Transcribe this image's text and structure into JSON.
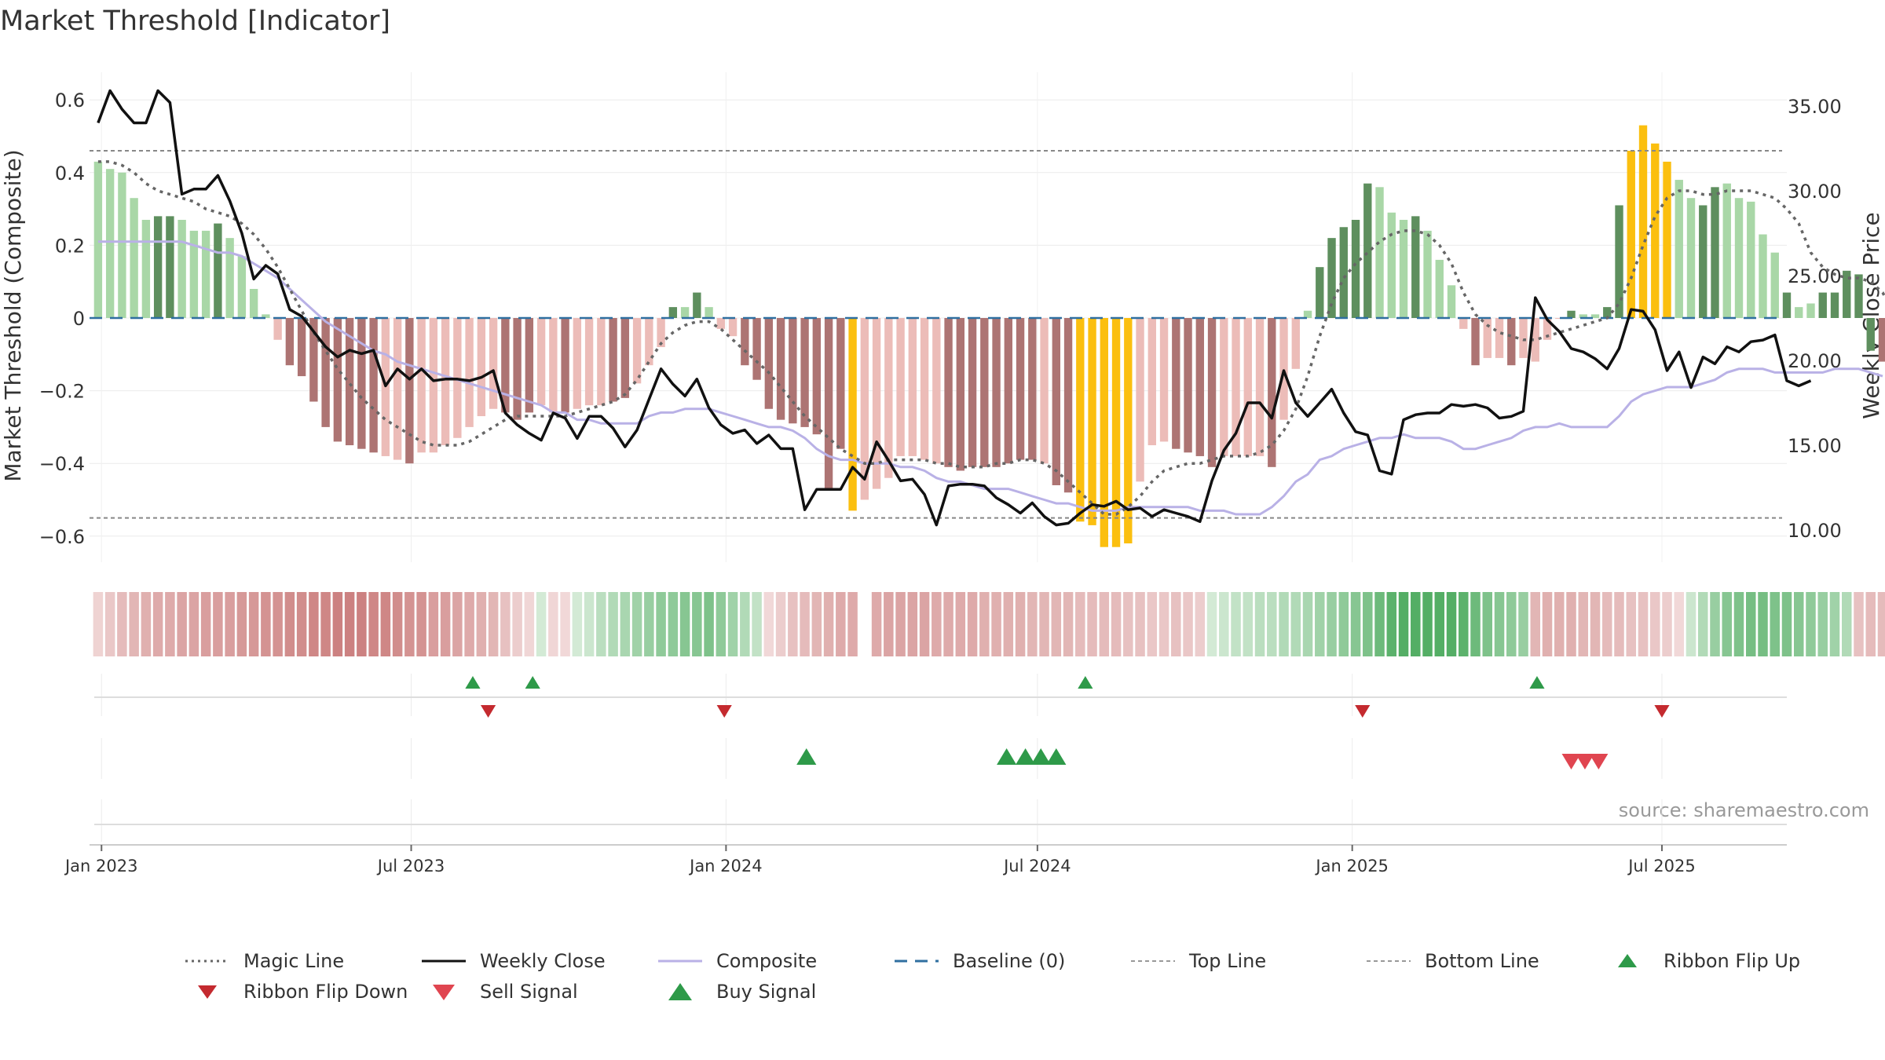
{
  "chart_data": {
    "type": "bar",
    "title": "Market Threshold [Indicator]",
    "ylabel_left": "Market Threshold (Composite)",
    "ylabel_right": "Weekly Close Price",
    "source": "source: sharemaestro.com",
    "ylim_left": [
      -0.7,
      0.7
    ],
    "ylim_right": [
      7.5,
      37.5
    ],
    "yticks_left": [
      {
        "value": 0.6,
        "label": "0.6"
      },
      {
        "value": 0.4,
        "label": "0.4"
      },
      {
        "value": 0.2,
        "label": "0.2"
      },
      {
        "value": 0,
        "label": "0"
      },
      {
        "value": -0.2,
        "label": "−0.2"
      },
      {
        "value": -0.4,
        "label": "−0.4"
      },
      {
        "value": -0.6,
        "label": "−0.6"
      }
    ],
    "yticks_right": [
      {
        "value": 35,
        "label": "35.00"
      },
      {
        "value": 30,
        "label": "30.00"
      },
      {
        "value": 25,
        "label": "25.00"
      },
      {
        "value": 20,
        "label": "20.00"
      },
      {
        "value": 15,
        "label": "15.00"
      },
      {
        "value": 10,
        "label": "10.00"
      }
    ],
    "xlim": [
      "2022-12-25",
      "2025-09-12"
    ],
    "xticks": [
      {
        "date": "2023-01-01",
        "label": "Jan 2023"
      },
      {
        "date": "2023-07-01",
        "label": "Jul 2023"
      },
      {
        "date": "2024-01-01",
        "label": "Jan 2024"
      },
      {
        "date": "2024-07-01",
        "label": "Jul 2024"
      },
      {
        "date": "2025-01-01",
        "label": "Jan 2025"
      },
      {
        "date": "2025-07-01",
        "label": "Jul 2025"
      }
    ],
    "start_date": "2022-12-30",
    "top_line": 0.46,
    "bottom_line": -0.55,
    "grid": true,
    "legend_position": "bottom",
    "colors": {
      "bar_pos_strong": "#5e8f5e",
      "bar_pos_light": "#a9d7a7",
      "bar_neg_strong": "#ad7473",
      "bar_neg_light": "#ecbcb8",
      "bar_extreme": "#fbbf0f",
      "weekly_close": "#111111",
      "magic_line": "#666666",
      "composite": "#b9b1e6",
      "baseline": "#2f6fa0",
      "threshold_lines": "#888888",
      "signal_up": "#2e9a49",
      "signal_down": "#d03038"
    },
    "composite_bars": [
      0.43,
      0.41,
      0.4,
      0.33,
      0.27,
      0.28,
      0.28,
      0.27,
      0.24,
      0.24,
      0.26,
      0.22,
      0.17,
      0.08,
      0.01,
      -0.06,
      -0.13,
      -0.16,
      -0.23,
      -0.3,
      -0.34,
      -0.35,
      -0.36,
      -0.37,
      -0.38,
      -0.39,
      -0.4,
      -0.37,
      -0.37,
      -0.35,
      -0.33,
      -0.3,
      -0.27,
      -0.25,
      -0.26,
      -0.28,
      -0.26,
      -0.24,
      -0.26,
      -0.26,
      -0.25,
      -0.24,
      -0.24,
      -0.23,
      -0.22,
      -0.18,
      -0.13,
      -0.08,
      0.03,
      0.03,
      0.07,
      0.03,
      -0.03,
      -0.05,
      -0.13,
      -0.17,
      -0.25,
      -0.28,
      -0.29,
      -0.3,
      -0.32,
      -0.47,
      -0.36,
      -0.53,
      -0.5,
      -0.47,
      -0.44,
      -0.38,
      -0.38,
      -0.39,
      -0.4,
      -0.41,
      -0.42,
      -0.41,
      -0.41,
      -0.41,
      -0.4,
      -0.39,
      -0.39,
      -0.4,
      -0.46,
      -0.48,
      -0.56,
      -0.57,
      -0.63,
      -0.63,
      -0.62,
      -0.45,
      -0.35,
      -0.34,
      -0.36,
      -0.37,
      -0.38,
      -0.41,
      -0.38,
      -0.38,
      -0.38,
      -0.38,
      -0.41,
      -0.28,
      -0.14,
      0.02,
      0.14,
      0.22,
      0.25,
      0.27,
      0.37,
      0.36,
      0.29,
      0.27,
      0.28,
      0.24,
      0.16,
      0.09,
      -0.03,
      -0.13,
      -0.11,
      -0.11,
      -0.13,
      -0.11,
      -0.12,
      -0.06,
      0.0,
      0.02,
      0.01,
      0.01,
      0.03,
      0.31,
      0.46,
      0.53,
      0.48,
      0.43,
      0.38,
      0.33,
      0.31,
      0.36,
      0.37,
      0.33,
      0.32,
      0.23,
      0.18,
      0.07,
      0.03,
      0.04,
      0.07,
      0.07,
      0.13,
      0.12,
      -0.09,
      -0.12
    ],
    "bar_colors": [
      "pl",
      "pl",
      "pl",
      "pl",
      "pl",
      "ps",
      "ps",
      "pl",
      "pl",
      "pl",
      "ps",
      "pl",
      "pl",
      "pl",
      "pl",
      "nl",
      "ns",
      "ns",
      "ns",
      "ns",
      "ns",
      "ns",
      "ns",
      "ns",
      "nl",
      "nl",
      "ns",
      "nl",
      "nl",
      "nl",
      "nl",
      "nl",
      "nl",
      "nl",
      "ns",
      "ns",
      "ns",
      "nl",
      "nl",
      "ns",
      "nl",
      "nl",
      "nl",
      "ns",
      "ns",
      "nl",
      "nl",
      "nl",
      "ps",
      "pl",
      "ps",
      "pl",
      "nl",
      "nl",
      "ns",
      "ns",
      "ns",
      "ns",
      "ns",
      "ns",
      "ns",
      "ns",
      "ns",
      "ex",
      "nl",
      "nl",
      "nl",
      "nl",
      "nl",
      "nl",
      "nl",
      "ns",
      "ns",
      "ns",
      "ns",
      "ns",
      "ns",
      "ns",
      "ns",
      "nl",
      "ns",
      "ns",
      "ex",
      "ex",
      "ex",
      "ex",
      "ex",
      "nl",
      "nl",
      "nl",
      "ns",
      "ns",
      "ns",
      "ns",
      "nl",
      "nl",
      "nl",
      "nl",
      "ns",
      "nl",
      "nl",
      "pl",
      "ps",
      "ps",
      "ps",
      "ps",
      "ps",
      "pl",
      "pl",
      "pl",
      "ps",
      "pl",
      "pl",
      "pl",
      "nl",
      "ns",
      "nl",
      "nl",
      "ns",
      "nl",
      "nl",
      "nl",
      "nl",
      "ps",
      "pl",
      "pl",
      "ps",
      "ps",
      "ex",
      "ex",
      "ex",
      "ex",
      "pl",
      "pl",
      "ps",
      "ps",
      "pl",
      "pl",
      "pl",
      "pl",
      "pl",
      "ps",
      "pl",
      "pl",
      "ps",
      "ps",
      "ps",
      "ps",
      "ps",
      "ns"
    ],
    "weekly_close": [
      34.0,
      35.9,
      34.8,
      34.0,
      34.0,
      35.9,
      35.2,
      29.8,
      30.1,
      30.1,
      30.9,
      29.4,
      27.5,
      24.8,
      25.6,
      25.1,
      23.0,
      22.6,
      21.7,
      20.8,
      20.2,
      20.6,
      20.4,
      20.6,
      18.5,
      19.5,
      18.9,
      19.5,
      18.8,
      18.9,
      18.9,
      18.8,
      19.0,
      19.4,
      16.9,
      16.2,
      15.7,
      15.3,
      16.9,
      16.6,
      15.4,
      16.7,
      16.7,
      16.0,
      14.9,
      15.9,
      17.7,
      19.5,
      18.6,
      17.9,
      18.9,
      17.2,
      16.2,
      15.7,
      15.9,
      15.1,
      15.6,
      14.8,
      14.8,
      11.2,
      12.4,
      12.4,
      12.4,
      13.7,
      13.0,
      15.2,
      14.1,
      12.9,
      13.0,
      12.1,
      10.3,
      12.6,
      12.7,
      12.7,
      12.6,
      11.9,
      11.5,
      11.0,
      11.6,
      10.8,
      10.3,
      10.4,
      11.0,
      11.5,
      11.4,
      11.7,
      11.2,
      11.3,
      10.8,
      11.2,
      11.0,
      10.8,
      10.5,
      12.9,
      14.7,
      15.7,
      17.5,
      17.5,
      16.6,
      19.4,
      17.5,
      16.7,
      17.5,
      18.3,
      16.9,
      15.8,
      15.6,
      13.5,
      13.3,
      16.5,
      16.8,
      16.9,
      16.9,
      17.4,
      17.3,
      17.4,
      17.2,
      16.6,
      16.7,
      17.0,
      23.7,
      22.4,
      21.7,
      20.7,
      20.5,
      20.1,
      19.5,
      20.7,
      23.0,
      22.9,
      21.8,
      19.4,
      20.5,
      18.4,
      20.2,
      19.8,
      20.8,
      20.5,
      21.1,
      21.2,
      21.5,
      18.8,
      18.5,
      18.8
    ],
    "magic_line": [
      0.43,
      0.43,
      0.42,
      0.4,
      0.37,
      0.35,
      0.34,
      0.33,
      0.32,
      0.3,
      0.29,
      0.28,
      0.26,
      0.23,
      0.19,
      0.14,
      0.08,
      0.02,
      -0.04,
      -0.09,
      -0.14,
      -0.18,
      -0.22,
      -0.25,
      -0.28,
      -0.3,
      -0.32,
      -0.34,
      -0.35,
      -0.35,
      -0.35,
      -0.34,
      -0.32,
      -0.3,
      -0.28,
      -0.27,
      -0.27,
      -0.27,
      -0.27,
      -0.27,
      -0.26,
      -0.25,
      -0.24,
      -0.23,
      -0.21,
      -0.17,
      -0.12,
      -0.07,
      -0.04,
      -0.02,
      -0.01,
      -0.01,
      -0.03,
      -0.06,
      -0.09,
      -0.12,
      -0.15,
      -0.19,
      -0.23,
      -0.27,
      -0.3,
      -0.33,
      -0.36,
      -0.38,
      -0.4,
      -0.4,
      -0.39,
      -0.39,
      -0.39,
      -0.39,
      -0.4,
      -0.4,
      -0.41,
      -0.41,
      -0.41,
      -0.4,
      -0.4,
      -0.39,
      -0.39,
      -0.4,
      -0.42,
      -0.45,
      -0.48,
      -0.51,
      -0.54,
      -0.54,
      -0.52,
      -0.49,
      -0.45,
      -0.42,
      -0.41,
      -0.4,
      -0.4,
      -0.39,
      -0.38,
      -0.38,
      -0.38,
      -0.37,
      -0.35,
      -0.31,
      -0.25,
      -0.16,
      -0.05,
      0.04,
      0.11,
      0.15,
      0.18,
      0.21,
      0.23,
      0.24,
      0.24,
      0.23,
      0.2,
      0.15,
      0.07,
      0.01,
      -0.02,
      -0.04,
      -0.05,
      -0.06,
      -0.06,
      -0.05,
      -0.04,
      -0.03,
      -0.02,
      -0.01,
      0.0,
      0.04,
      0.11,
      0.2,
      0.28,
      0.33,
      0.35,
      0.35,
      0.34,
      0.34,
      0.35,
      0.35,
      0.35,
      0.34,
      0.33,
      0.3,
      0.26,
      0.18,
      0.14,
      0.12,
      0.11,
      0.11,
      0.1,
      0.07,
      0.01
    ],
    "composite_line": [
      0.21,
      0.21,
      0.21,
      0.21,
      0.21,
      0.21,
      0.21,
      0.21,
      0.2,
      0.19,
      0.18,
      0.18,
      0.17,
      0.15,
      0.13,
      0.11,
      0.08,
      0.05,
      0.02,
      -0.01,
      -0.03,
      -0.05,
      -0.07,
      -0.09,
      -0.1,
      -0.12,
      -0.13,
      -0.14,
      -0.15,
      -0.16,
      -0.17,
      -0.18,
      -0.19,
      -0.2,
      -0.21,
      -0.22,
      -0.23,
      -0.24,
      -0.26,
      -0.26,
      -0.28,
      -0.28,
      -0.29,
      -0.29,
      -0.29,
      -0.29,
      -0.27,
      -0.26,
      -0.26,
      -0.25,
      -0.25,
      -0.25,
      -0.26,
      -0.27,
      -0.28,
      -0.29,
      -0.3,
      -0.3,
      -0.31,
      -0.33,
      -0.36,
      -0.38,
      -0.39,
      -0.39,
      -0.4,
      -0.4,
      -0.4,
      -0.41,
      -0.41,
      -0.42,
      -0.44,
      -0.45,
      -0.45,
      -0.46,
      -0.47,
      -0.47,
      -0.47,
      -0.48,
      -0.49,
      -0.5,
      -0.51,
      -0.51,
      -0.52,
      -0.53,
      -0.53,
      -0.53,
      -0.52,
      -0.52,
      -0.52,
      -0.52,
      -0.52,
      -0.52,
      -0.53,
      -0.53,
      -0.53,
      -0.54,
      -0.54,
      -0.54,
      -0.52,
      -0.49,
      -0.45,
      -0.43,
      -0.39,
      -0.38,
      -0.36,
      -0.35,
      -0.34,
      -0.33,
      -0.33,
      -0.32,
      -0.33,
      -0.33,
      -0.33,
      -0.34,
      -0.36,
      -0.36,
      -0.35,
      -0.34,
      -0.33,
      -0.31,
      -0.3,
      -0.3,
      -0.29,
      -0.3,
      -0.3,
      -0.3,
      -0.3,
      -0.27,
      -0.23,
      -0.21,
      -0.2,
      -0.19,
      -0.19,
      -0.19,
      -0.18,
      -0.17,
      -0.15,
      -0.14,
      -0.14,
      -0.14,
      -0.15,
      -0.15,
      -0.15,
      -0.15,
      -0.15,
      -0.14,
      -0.14,
      -0.14,
      -0.15,
      -0.16
    ],
    "ribbon": [
      -0.15,
      -0.25,
      -0.35,
      -0.4,
      -0.45,
      -0.5,
      -0.5,
      -0.55,
      -0.55,
      -0.6,
      -0.6,
      -0.6,
      -0.65,
      -0.65,
      -0.7,
      -0.7,
      -0.75,
      -0.75,
      -0.8,
      -0.8,
      -0.85,
      -0.85,
      -0.85,
      -0.8,
      -0.8,
      -0.75,
      -0.7,
      -0.7,
      -0.6,
      -0.6,
      -0.55,
      -0.5,
      -0.45,
      -0.4,
      -0.3,
      -0.2,
      -0.12,
      0.1,
      -0.12,
      -0.1,
      0.1,
      0.15,
      0.25,
      0.3,
      0.35,
      0.4,
      0.45,
      0.5,
      0.5,
      0.55,
      0.55,
      0.6,
      0.5,
      0.4,
      0.3,
      0.2,
      -0.1,
      -0.2,
      -0.3,
      -0.35,
      -0.4,
      -0.45,
      -0.5,
      -0.5,
      null,
      -0.5,
      -0.55,
      -0.55,
      -0.55,
      -0.55,
      -0.5,
      -0.5,
      -0.5,
      -0.5,
      -0.45,
      -0.45,
      -0.45,
      -0.45,
      -0.4,
      -0.4,
      -0.4,
      -0.4,
      -0.35,
      -0.35,
      -0.35,
      -0.35,
      -0.3,
      -0.3,
      -0.25,
      -0.25,
      -0.3,
      -0.25,
      -0.2,
      0.1,
      0.15,
      0.2,
      0.2,
      0.25,
      0.25,
      0.3,
      0.3,
      0.35,
      0.4,
      0.45,
      0.5,
      0.55,
      0.6,
      0.7,
      0.8,
      0.85,
      0.85,
      0.85,
      0.85,
      0.85,
      0.8,
      0.7,
      0.6,
      0.55,
      0.5,
      0.45,
      -0.4,
      -0.45,
      -0.45,
      -0.45,
      -0.4,
      -0.4,
      -0.35,
      -0.35,
      -0.3,
      -0.3,
      -0.25,
      -0.2,
      -0.1,
      0.15,
      0.3,
      0.45,
      0.55,
      0.6,
      0.65,
      0.65,
      0.6,
      0.6,
      0.55,
      0.5,
      0.45,
      0.4,
      0.3,
      -0.3,
      -0.35,
      -0.35,
      -0.35,
      -0.35,
      -0.35,
      -0.35,
      -0.35,
      -0.4,
      -0.4,
      -0.4
    ],
    "ribbon_flip_up": [
      "2023-08-06",
      "2023-09-10",
      "2024-07-29",
      "2025-04-19"
    ],
    "ribbon_flip_down": [
      "2023-08-15",
      "2023-12-31",
      "2025-01-07",
      "2025-07-01"
    ],
    "buy_signals": [
      "2024-02-17",
      "2024-06-13",
      "2024-06-24",
      "2024-07-03",
      "2024-07-12"
    ],
    "sell_signals": [
      "2025-05-09",
      "2025-05-17",
      "2025-05-25"
    ],
    "legend": [
      {
        "label": "Magic Line",
        "symbol": "dotted-gray"
      },
      {
        "label": "Weekly Close",
        "symbol": "solid-black"
      },
      {
        "label": "Composite",
        "symbol": "solid-lavender"
      },
      {
        "label": "Baseline (0)",
        "symbol": "dashed-blue"
      },
      {
        "label": "Top Line",
        "symbol": "dotted-light"
      },
      {
        "label": "Bottom Line",
        "symbol": "dotted-light"
      },
      {
        "label": "Ribbon Flip Up",
        "symbol": "triangle-up-green"
      },
      {
        "label": "Ribbon Flip Down",
        "symbol": "triangle-down-darkred"
      },
      {
        "label": "Sell Signal",
        "symbol": "triangle-down-red"
      },
      {
        "label": "Buy Signal",
        "symbol": "triangle-up-green-large"
      }
    ]
  }
}
